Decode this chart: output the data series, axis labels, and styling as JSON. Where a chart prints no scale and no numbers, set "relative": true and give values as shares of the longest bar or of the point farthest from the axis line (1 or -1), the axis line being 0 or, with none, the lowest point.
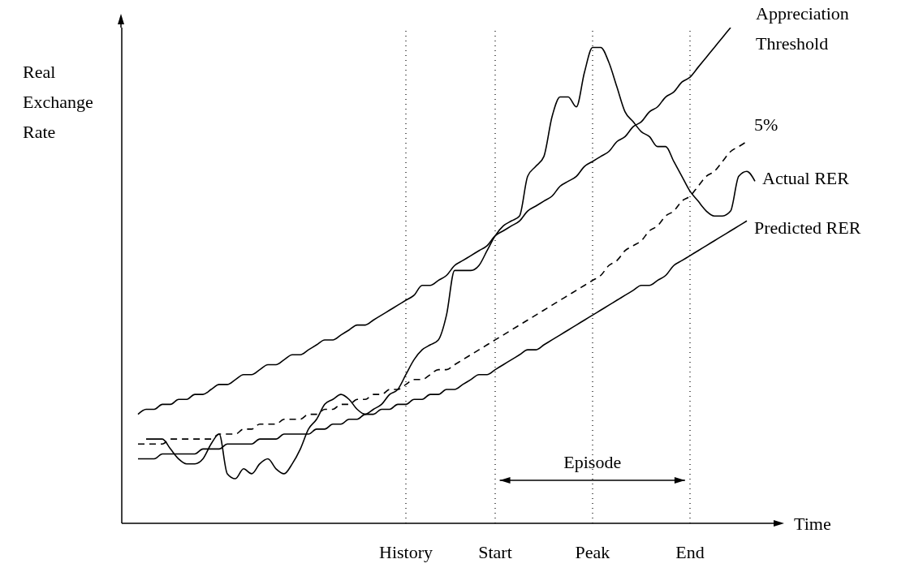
{
  "chart_data": {
    "type": "line",
    "relative": true,
    "xlabel": "Time",
    "ylabel": "Real Exchange Rate",
    "annotations": [
      "Episode"
    ],
    "marker": "none",
    "categories": [
      null,
      null,
      null,
      null,
      null,
      null,
      null,
      null,
      null,
      null,
      null,
      null,
      null,
      null,
      null,
      null,
      null,
      null,
      null,
      null,
      null,
      null,
      null,
      null,
      null,
      null,
      null,
      null,
      null,
      null,
      null,
      null,
      null,
      null,
      null,
      "History",
      null,
      null,
      null,
      null,
      null,
      null,
      null,
      null,
      null,
      null,
      "Start",
      null,
      null,
      null,
      null,
      null,
      null,
      null,
      null,
      null,
      null,
      null,
      "Peak",
      null,
      null,
      null,
      null,
      null,
      null,
      null,
      null,
      null,
      null,
      null,
      "End",
      null,
      null,
      null,
      null,
      null,
      null,
      null,
      null,
      null,
      null,
      null
    ],
    "ref_lines": [
      {
        "axis": "x",
        "value": "History",
        "line_style": "dotted",
        "color": "#000000"
      },
      {
        "axis": "x",
        "value": "Start",
        "line_style": "dotted",
        "color": "#000000"
      },
      {
        "axis": "x",
        "value": "Peak",
        "line_style": "dotted",
        "color": "#000000"
      },
      {
        "axis": "x",
        "value": "End",
        "line_style": "dotted",
        "color": "#000000"
      }
    ],
    "series": [
      {
        "name": "Appreciation Threshold",
        "color": "#000000",
        "line_style": "solid",
        "values": [
          null,
          null,
          0.22,
          0.23,
          0.23,
          0.24,
          0.24,
          0.25,
          0.25,
          0.26,
          0.26,
          0.27,
          0.28,
          0.28,
          0.29,
          0.3,
          0.3,
          0.31,
          0.32,
          0.32,
          0.33,
          0.34,
          0.34,
          0.35,
          0.36,
          0.37,
          0.37,
          0.38,
          0.39,
          0.4,
          0.4,
          0.41,
          0.42,
          0.43,
          0.44,
          0.45,
          0.46,
          0.48,
          0.48,
          0.49,
          0.5,
          0.52,
          0.53,
          0.54,
          0.55,
          0.56,
          0.58,
          0.59,
          0.6,
          0.61,
          0.63,
          0.64,
          0.65,
          0.66,
          0.68,
          0.69,
          0.7,
          0.72,
          0.73,
          0.74,
          0.75,
          0.77,
          0.78,
          0.8,
          0.81,
          0.83,
          0.84,
          0.86,
          0.87,
          0.89,
          0.9,
          0.92,
          0.94,
          0.96,
          0.98,
          1,
          null,
          null,
          null,
          null,
          null,
          null
        ]
      },
      {
        "name": "5%",
        "color": "#000000",
        "line_style": "dashed",
        "values": [
          null,
          null,
          0.16,
          0.16,
          0.16,
          0.16,
          0.17,
          0.17,
          0.17,
          0.17,
          0.17,
          0.17,
          0.18,
          0.18,
          0.18,
          0.19,
          0.19,
          0.2,
          0.2,
          0.2,
          0.21,
          0.21,
          0.21,
          0.22,
          0.22,
          0.23,
          0.23,
          0.24,
          0.24,
          0.25,
          0.25,
          0.26,
          0.26,
          0.27,
          0.27,
          0.28,
          0.29,
          0.29,
          0.3,
          0.31,
          0.31,
          0.32,
          0.33,
          0.34,
          0.35,
          0.36,
          0.37,
          0.38,
          0.39,
          0.4,
          0.41,
          0.42,
          0.43,
          0.44,
          0.45,
          0.46,
          0.47,
          0.48,
          0.49,
          0.5,
          0.52,
          0.53,
          0.55,
          0.56,
          0.57,
          0.59,
          0.6,
          0.62,
          0.63,
          0.65,
          0.66,
          0.68,
          0.7,
          0.71,
          0.73,
          0.75,
          0.76,
          0.77,
          null,
          null,
          null,
          null
        ]
      },
      {
        "name": "Actual RER",
        "color": "#000000",
        "line_style": "solid",
        "values": [
          null,
          null,
          null,
          0.17,
          0.17,
          0.17,
          0.15,
          0.13,
          0.12,
          0.12,
          0.13,
          0.16,
          0.18,
          0.1,
          0.09,
          0.11,
          0.1,
          0.12,
          0.13,
          0.11,
          0.1,
          0.12,
          0.15,
          0.19,
          0.21,
          0.24,
          0.25,
          0.26,
          0.25,
          0.23,
          0.22,
          0.23,
          0.24,
          0.26,
          0.27,
          0.3,
          0.33,
          0.35,
          0.36,
          0.37,
          0.42,
          0.51,
          0.51,
          0.51,
          0.52,
          0.55,
          0.58,
          0.6,
          0.61,
          0.62,
          0.7,
          0.72,
          0.74,
          0.82,
          0.86,
          0.86,
          0.84,
          0.91,
          0.96,
          0.96,
          0.93,
          0.88,
          0.83,
          0.81,
          0.79,
          0.78,
          0.76,
          0.76,
          0.73,
          0.7,
          0.67,
          0.65,
          0.63,
          0.62,
          0.62,
          0.63,
          0.7,
          0.71,
          0.69,
          null,
          null,
          null
        ]
      },
      {
        "name": "Predicted RER",
        "color": "#000000",
        "line_style": "solid",
        "values": [
          null,
          null,
          0.13,
          0.13,
          0.13,
          0.14,
          0.14,
          0.14,
          0.14,
          0.14,
          0.15,
          0.15,
          0.15,
          0.16,
          0.16,
          0.16,
          0.16,
          0.17,
          0.17,
          0.17,
          0.18,
          0.18,
          0.18,
          0.18,
          0.19,
          0.19,
          0.2,
          0.2,
          0.21,
          0.21,
          0.22,
          0.22,
          0.23,
          0.23,
          0.24,
          0.24,
          0.25,
          0.25,
          0.26,
          0.26,
          0.27,
          0.27,
          0.28,
          0.29,
          0.3,
          0.3,
          0.31,
          0.32,
          0.33,
          0.34,
          0.35,
          0.35,
          0.36,
          0.37,
          0.38,
          0.39,
          0.4,
          0.41,
          0.42,
          0.43,
          0.44,
          0.45,
          0.46,
          0.47,
          0.48,
          0.48,
          0.49,
          0.5,
          0.52,
          0.53,
          0.54,
          0.55,
          0.56,
          0.57,
          0.58,
          0.59,
          0.6,
          0.61,
          null,
          null,
          null,
          null
        ]
      }
    ]
  }
}
